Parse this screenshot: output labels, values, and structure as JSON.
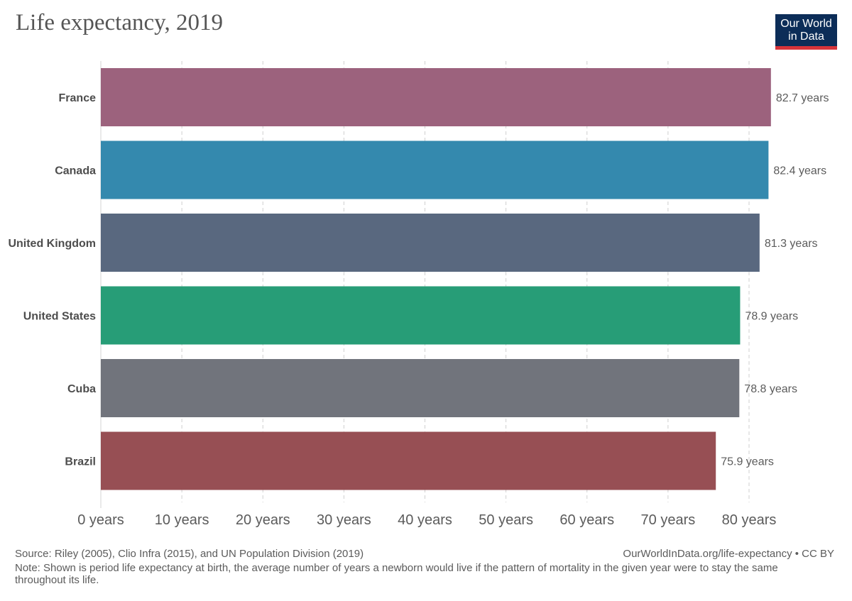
{
  "header": {
    "title": "Life expectancy, 2019",
    "logo_line1": "Our World",
    "logo_line2": "in Data"
  },
  "footer": {
    "source": "Source: Riley (2005), Clio Infra (2015), and UN Population Division (2019)",
    "url": "OurWorldInData.org/life-expectancy • CC BY",
    "note": "Note: Shown is period life expectancy at birth, the average number of years a newborn would live if the pattern of mortality in the given year were to stay the same throughout its life."
  },
  "colors": {
    "logo_background": "#0c2d58",
    "logo_accent": "#d7343a"
  },
  "chart_data": {
    "type": "bar",
    "orientation": "horizontal",
    "title": "Life expectancy, 2019",
    "categories": [
      "France",
      "Canada",
      "United Kingdom",
      "United States",
      "Cuba",
      "Brazil"
    ],
    "values": [
      82.7,
      82.4,
      81.3,
      78.9,
      78.8,
      75.9
    ],
    "value_labels": [
      "82.7 years",
      "82.4 years",
      "81.3 years",
      "78.9 years",
      "78.8 years",
      "75.9 years"
    ],
    "colors": [
      "#9c627d",
      "#3489ae",
      "#59687f",
      "#279d77",
      "#71747c",
      "#974f54"
    ],
    "xlim": [
      0,
      80
    ],
    "xticks": [
      0,
      10,
      20,
      30,
      40,
      50,
      60,
      70,
      80
    ],
    "xtick_labels": [
      "0 years",
      "10 years",
      "20 years",
      "30 years",
      "40 years",
      "50 years",
      "60 years",
      "70 years",
      "80 years"
    ],
    "grid": true,
    "legend": "none"
  }
}
